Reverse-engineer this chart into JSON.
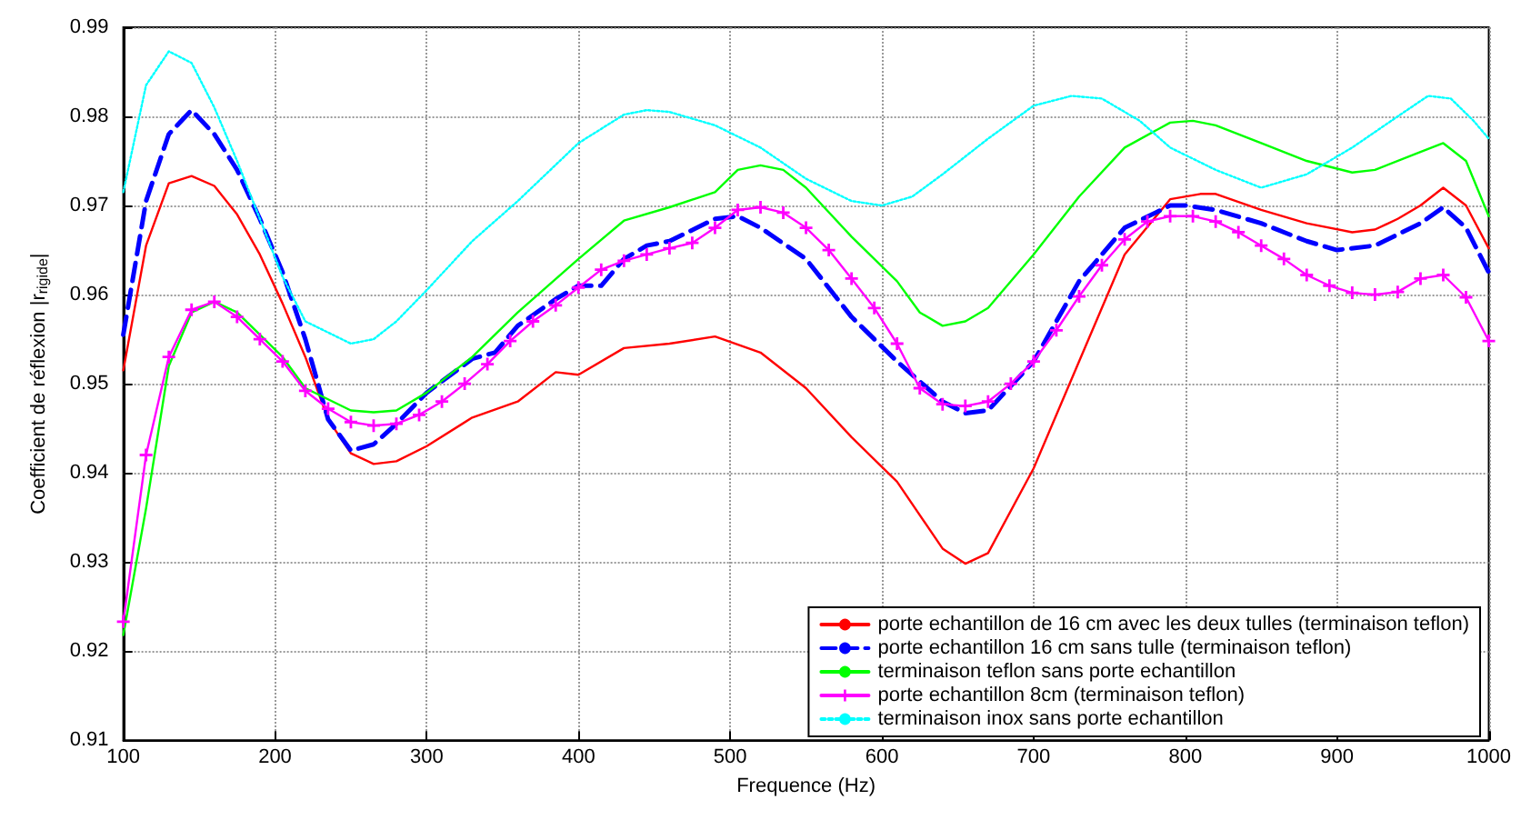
{
  "chart_data": {
    "type": "line",
    "xlabel": "Frequence (Hz)",
    "ylabel": "Coefficient de réflexion |r$_{rigide}$|",
    "xlim": [
      100,
      1000
    ],
    "ylim": [
      0.91,
      0.99
    ],
    "xticks": [
      100,
      200,
      300,
      400,
      500,
      600,
      700,
      800,
      900,
      1000
    ],
    "yticks": [
      0.91,
      0.92,
      0.93,
      0.94,
      0.95,
      0.96,
      0.97,
      0.98,
      0.99
    ],
    "grid": true,
    "legend": "bottom right",
    "series": [
      {
        "name": "porte echantillon de 16 cm avec les deux tulles (terminaison teflon)",
        "color": "#ff0000",
        "line_style": "solid",
        "marker": "none",
        "x": [
          100,
          115,
          130,
          145,
          160,
          175,
          190,
          205,
          220,
          235,
          250,
          265,
          280,
          300,
          330,
          360,
          385,
          400,
          430,
          460,
          490,
          520,
          550,
          580,
          610,
          640,
          655,
          670,
          700,
          730,
          760,
          790,
          810,
          820,
          850,
          880,
          910,
          925,
          940,
          955,
          970,
          985,
          1000
        ],
        "values": [
          0.9515,
          0.9655,
          0.9725,
          0.9733,
          0.9722,
          0.969,
          0.9645,
          0.959,
          0.953,
          0.946,
          0.9422,
          0.941,
          0.9413,
          0.943,
          0.9462,
          0.948,
          0.9513,
          0.951,
          0.954,
          0.9545,
          0.9553,
          0.9535,
          0.9495,
          0.944,
          0.939,
          0.9315,
          0.9298,
          0.931,
          0.9405,
          0.9525,
          0.9645,
          0.9707,
          0.9713,
          0.9713,
          0.9695,
          0.968,
          0.967,
          0.9673,
          0.9685,
          0.97,
          0.972,
          0.97,
          0.9652
        ]
      },
      {
        "name": "porte echantillon 16 cm sans tulle (terminaison teflon)",
        "color": "#0000ff",
        "line_style": "dashed",
        "marker": "none",
        "x": [
          100,
          115,
          130,
          145,
          160,
          175,
          190,
          205,
          220,
          235,
          250,
          265,
          280,
          300,
          330,
          345,
          360,
          385,
          400,
          415,
          430,
          445,
          460,
          490,
          505,
          520,
          550,
          580,
          610,
          640,
          655,
          670,
          700,
          730,
          760,
          790,
          800,
          820,
          850,
          880,
          900,
          925,
          955,
          970,
          985,
          1000
        ],
        "values": [
          0.9555,
          0.9705,
          0.978,
          0.9807,
          0.978,
          0.974,
          0.9685,
          0.9625,
          0.955,
          0.946,
          0.9425,
          0.9432,
          0.9455,
          0.949,
          0.9528,
          0.9535,
          0.9565,
          0.9595,
          0.961,
          0.961,
          0.964,
          0.9655,
          0.966,
          0.9685,
          0.9688,
          0.9675,
          0.964,
          0.9575,
          0.9525,
          0.948,
          0.9467,
          0.947,
          0.9525,
          0.9615,
          0.9675,
          0.97,
          0.97,
          0.9695,
          0.968,
          0.966,
          0.965,
          0.9655,
          0.968,
          0.9698,
          0.9675,
          0.9625
        ]
      },
      {
        "name": "terminaison teflon sans porte echantillon",
        "color": "#00ff00",
        "line_style": "solid",
        "marker": "none",
        "x": [
          100,
          115,
          130,
          145,
          160,
          175,
          190,
          205,
          220,
          250,
          265,
          280,
          300,
          330,
          360,
          400,
          430,
          460,
          490,
          505,
          520,
          535,
          550,
          580,
          610,
          625,
          640,
          655,
          670,
          700,
          730,
          760,
          790,
          805,
          820,
          850,
          880,
          910,
          925,
          955,
          970,
          985,
          1000
        ],
        "values": [
          0.9218,
          0.936,
          0.952,
          0.958,
          0.9592,
          0.958,
          0.9555,
          0.953,
          0.9495,
          0.947,
          0.9468,
          0.947,
          0.949,
          0.953,
          0.958,
          0.964,
          0.9683,
          0.9698,
          0.9715,
          0.974,
          0.9745,
          0.974,
          0.972,
          0.9665,
          0.9615,
          0.958,
          0.9565,
          0.957,
          0.9585,
          0.9645,
          0.971,
          0.9765,
          0.9793,
          0.9795,
          0.979,
          0.977,
          0.975,
          0.9737,
          0.974,
          0.976,
          0.977,
          0.975,
          0.9688
        ]
      },
      {
        "name": "porte echantillon 8cm (terminaison teflon)",
        "color": "#ff00ff",
        "line_style": "solid",
        "marker": "cross",
        "x": [
          100,
          115,
          130,
          145,
          160,
          175,
          190,
          205,
          220,
          235,
          250,
          265,
          280,
          295,
          310,
          325,
          340,
          355,
          370,
          385,
          400,
          415,
          430,
          445,
          460,
          475,
          490,
          505,
          520,
          535,
          550,
          565,
          580,
          595,
          610,
          625,
          640,
          655,
          670,
          685,
          700,
          715,
          730,
          745,
          760,
          775,
          790,
          805,
          820,
          835,
          850,
          865,
          880,
          895,
          910,
          925,
          940,
          955,
          970,
          985,
          1000
        ],
        "values": [
          0.9233,
          0.942,
          0.953,
          0.9583,
          0.9592,
          0.9575,
          0.955,
          0.9525,
          0.9492,
          0.9472,
          0.9457,
          0.9453,
          0.9455,
          0.9465,
          0.948,
          0.95,
          0.9522,
          0.9548,
          0.957,
          0.9588,
          0.9608,
          0.9628,
          0.9638,
          0.9645,
          0.9652,
          0.9658,
          0.9675,
          0.9695,
          0.9698,
          0.9692,
          0.9675,
          0.965,
          0.9618,
          0.9585,
          0.9545,
          0.9495,
          0.9477,
          0.9475,
          0.948,
          0.95,
          0.9525,
          0.956,
          0.9598,
          0.9633,
          0.9662,
          0.9682,
          0.9688,
          0.9688,
          0.9682,
          0.967,
          0.9655,
          0.964,
          0.9622,
          0.961,
          0.9602,
          0.96,
          0.9603,
          0.9618,
          0.9622,
          0.9597,
          0.9548
        ]
      },
      {
        "name": "terminaison inox sans porte echantillon",
        "color": "#00ffff",
        "line_style": "dotted",
        "marker": "none",
        "x": [
          100,
          115,
          130,
          145,
          160,
          175,
          190,
          205,
          220,
          250,
          265,
          280,
          300,
          330,
          360,
          400,
          430,
          445,
          460,
          490,
          520,
          550,
          580,
          600,
          620,
          640,
          670,
          700,
          725,
          745,
          770,
          790,
          820,
          850,
          880,
          910,
          940,
          960,
          975,
          990,
          1000
        ],
        "values": [
          0.9715,
          0.9835,
          0.9873,
          0.986,
          0.981,
          0.975,
          0.9685,
          0.962,
          0.957,
          0.9545,
          0.955,
          0.957,
          0.9605,
          0.966,
          0.9705,
          0.977,
          0.9802,
          0.9807,
          0.9805,
          0.979,
          0.9765,
          0.973,
          0.9705,
          0.97,
          0.971,
          0.9735,
          0.9775,
          0.9812,
          0.9823,
          0.982,
          0.9795,
          0.9765,
          0.974,
          0.972,
          0.9735,
          0.9765,
          0.98,
          0.9823,
          0.982,
          0.9795,
          0.9775
        ]
      }
    ]
  }
}
